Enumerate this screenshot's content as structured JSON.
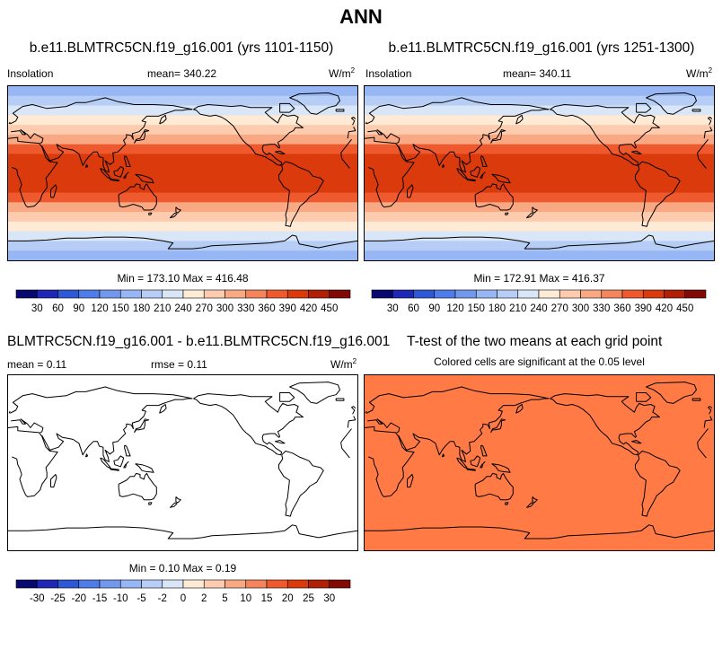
{
  "title": "ANN",
  "coastline_color": "#000000",
  "panels": {
    "p1": {
      "title": "b.e11.BLMTRC5CN.f19_g16.001 (yrs 1101-1150)",
      "left_label": "Insolation",
      "mean_label": "mean= 340.22",
      "units_base": "W/m",
      "units_exp": "2",
      "minmax": "Min = 173.10 Max = 416.48"
    },
    "p2": {
      "title": "b.e11.BLMTRC5CN.f19_g16.001 (yrs 1251-1300)",
      "left_label": "Insolation",
      "mean_label": "mean= 340.11",
      "units_base": "W/m",
      "units_exp": "2",
      "minmax": "Min = 172.91 Max = 416.37"
    },
    "p3": {
      "title": "BLMTRC5CN.f19_g16.001 - b.e11.BLMTRC5CN.f19_g16.001",
      "mean_label": "mean =   0.11",
      "rmse_label": "rmse =   0.11",
      "units_base": "W/m",
      "units_exp": "2",
      "minmax": "Min =  0.10 Max =  0.19"
    },
    "p4": {
      "title": "T-test of the two means at each grid point",
      "subtitle": "Colored cells are significant at the 0.05 level",
      "fill_color": "#FF7A45"
    }
  },
  "chart_data": [
    {
      "type": "heatmap",
      "name": "p1",
      "title": "b.e11.BLMTRC5CN.f19_g16.001 (yrs 1101-1150)",
      "variable": "Insolation",
      "units": "W/m2",
      "mean": 340.22,
      "min": 173.1,
      "max": 416.48,
      "lat_bands": [
        {
          "lat": [
            80,
            90
          ],
          "value": 175
        },
        {
          "lat": [
            70,
            80
          ],
          "value": 190
        },
        {
          "lat": [
            60,
            70
          ],
          "value": 215
        },
        {
          "lat": [
            50,
            60
          ],
          "value": 255
        },
        {
          "lat": [
            40,
            50
          ],
          "value": 290
        },
        {
          "lat": [
            30,
            40
          ],
          "value": 325
        },
        {
          "lat": [
            20,
            30
          ],
          "value": 365
        },
        {
          "lat": [
            10,
            20
          ],
          "value": 395
        },
        {
          "lat": [
            -10,
            10
          ],
          "value": 415
        },
        {
          "lat": [
            -20,
            -10
          ],
          "value": 395
        },
        {
          "lat": [
            -30,
            -20
          ],
          "value": 365
        },
        {
          "lat": [
            -40,
            -30
          ],
          "value": 325
        },
        {
          "lat": [
            -50,
            -40
          ],
          "value": 290
        },
        {
          "lat": [
            -60,
            -50
          ],
          "value": 255
        },
        {
          "lat": [
            -70,
            -60
          ],
          "value": 215
        },
        {
          "lat": [
            -80,
            -70
          ],
          "value": 190
        },
        {
          "lat": [
            -90,
            -80
          ],
          "value": 175
        }
      ]
    },
    {
      "type": "heatmap",
      "name": "p2",
      "title": "b.e11.BLMTRC5CN.f19_g16.001 (yrs 1251-1300)",
      "variable": "Insolation",
      "units": "W/m2",
      "mean": 340.11,
      "min": 172.91,
      "max": 416.37,
      "lat_bands": [
        {
          "lat": [
            80,
            90
          ],
          "value": 175
        },
        {
          "lat": [
            70,
            80
          ],
          "value": 190
        },
        {
          "lat": [
            60,
            70
          ],
          "value": 215
        },
        {
          "lat": [
            50,
            60
          ],
          "value": 255
        },
        {
          "lat": [
            40,
            50
          ],
          "value": 290
        },
        {
          "lat": [
            30,
            40
          ],
          "value": 325
        },
        {
          "lat": [
            20,
            30
          ],
          "value": 365
        },
        {
          "lat": [
            10,
            20
          ],
          "value": 395
        },
        {
          "lat": [
            -10,
            10
          ],
          "value": 415
        },
        {
          "lat": [
            -20,
            -10
          ],
          "value": 395
        },
        {
          "lat": [
            -30,
            -20
          ],
          "value": 365
        },
        {
          "lat": [
            -40,
            -30
          ],
          "value": 325
        },
        {
          "lat": [
            -50,
            -40
          ],
          "value": 290
        },
        {
          "lat": [
            -60,
            -50
          ],
          "value": 255
        },
        {
          "lat": [
            -70,
            -60
          ],
          "value": 215
        },
        {
          "lat": [
            -80,
            -70
          ],
          "value": 190
        },
        {
          "lat": [
            -90,
            -80
          ],
          "value": 175
        }
      ]
    },
    {
      "type": "heatmap",
      "name": "p3",
      "title": "BLMTRC5CN.f19_g16.001 - b.e11.BLMTRC5CN.f19_g16.001",
      "units": "W/m2",
      "mean": 0.11,
      "rmse": 0.11,
      "min": 0.1,
      "max": 0.19,
      "lat_bands": [
        {
          "lat": [
            -90,
            90
          ],
          "value": 0.11
        }
      ]
    },
    {
      "type": "heatmap",
      "name": "p4",
      "title": "T-test of the two means at each grid point",
      "subtitle": "Colored cells are significant at the 0.05 level",
      "lat_bands": [
        {
          "lat": [
            -90,
            90
          ],
          "significant": true
        }
      ]
    }
  ],
  "colorbars": {
    "abs": {
      "levels": [
        "30",
        "60",
        "90",
        "120",
        "150",
        "180",
        "210",
        "240",
        "270",
        "300",
        "330",
        "360",
        "390",
        "420",
        "450"
      ],
      "colors": [
        "#08086E",
        "#1E28B4",
        "#2E58D6",
        "#4F7CE8",
        "#7298EE",
        "#97B6F4",
        "#B6CEF6",
        "#D8E6F8",
        "#FFEAD6",
        "#FDCCAE",
        "#F8A882",
        "#F4845C",
        "#EE5A2E",
        "#DA3A0C",
        "#B02006",
        "#820A06"
      ]
    },
    "diff": {
      "levels": [
        "-30",
        "-25",
        "-20",
        "-15",
        "-10",
        "-5",
        "-2",
        "0",
        "2",
        "5",
        "10",
        "15",
        "20",
        "25",
        "30"
      ],
      "colors": [
        "#08086E",
        "#1E28B4",
        "#2E58D6",
        "#4F7CE8",
        "#7298EE",
        "#97B6F4",
        "#B6CEF6",
        "#D8E6F8",
        "#FFEAD6",
        "#FDCCAE",
        "#F8A882",
        "#F4845C",
        "#EE5A2E",
        "#DA3A0C",
        "#B02006",
        "#820A06"
      ]
    }
  }
}
